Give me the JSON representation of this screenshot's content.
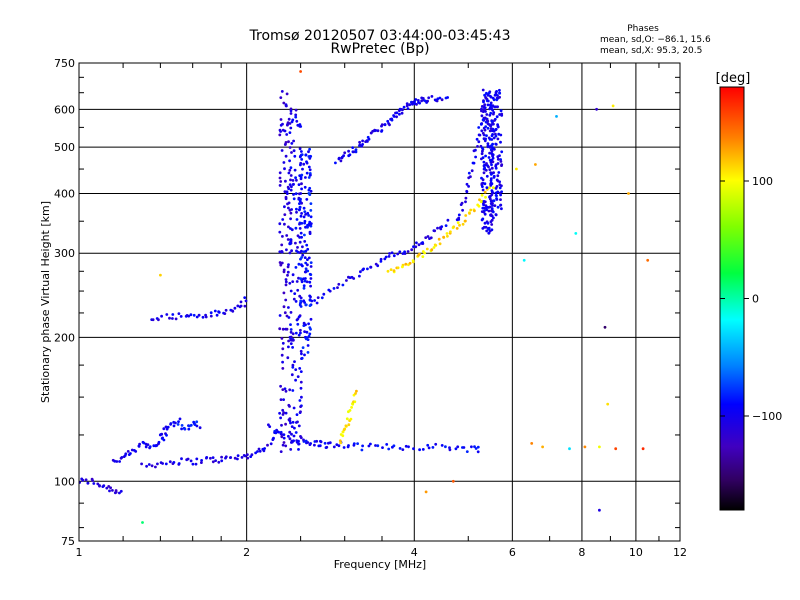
{
  "chart_data": {
    "type": "scatter",
    "title": "Tromsø 20120507 03:44:00-03:45:43",
    "subtitle": "RwPretec (Bp)",
    "xlabel": "Frequency [MHz]",
    "ylabel": "Stationary phase Virtual Height [km]",
    "x_scale": "log",
    "y_scale": "log",
    "xlim": [
      1,
      12
    ],
    "ylim": [
      75,
      750
    ],
    "x_ticks": [
      1,
      2,
      4,
      6,
      8,
      10,
      12
    ],
    "y_ticks": [
      75,
      100,
      200,
      300,
      400,
      500,
      600,
      750
    ],
    "x_tick_labels": [
      "1",
      "2",
      "4",
      "6",
      "8",
      "10",
      "12"
    ],
    "y_tick_labels": [
      "75",
      "100",
      "200",
      "300",
      "400",
      "500",
      "600",
      "750"
    ],
    "grid": true,
    "phases_box": {
      "title": "Phases",
      "line1": "mean, sd,O: −86.1, 15.6",
      "line2": "mean, sd,X:  95.3, 20.5"
    },
    "colorbar": {
      "label": "[deg]",
      "range": [
        -180,
        180
      ],
      "ticks": [
        100,
        0,
        -100
      ],
      "tick_labels": [
        "100",
        "0",
        "−100"
      ]
    },
    "traces": [
      {
        "x": [
          1.0,
          1.05,
          1.1,
          1.15,
          1.2
        ],
        "y": [
          100,
          100,
          98,
          96,
          95
        ],
        "phase": -110
      },
      {
        "x": [
          1.15,
          1.2,
          1.25,
          1.3,
          1.35,
          1.4,
          1.45
        ],
        "y": [
          110,
          112,
          115,
          120,
          118,
          122,
          125
        ],
        "phase": -100
      },
      {
        "x": [
          1.3,
          1.4,
          1.5,
          1.6,
          1.7,
          1.8,
          1.9,
          2.0,
          2.1,
          2.2,
          2.3
        ],
        "y": [
          108,
          109,
          110,
          110,
          111,
          111,
          112,
          113,
          115,
          120,
          130
        ],
        "phase": -105
      },
      {
        "x": [
          1.4,
          1.45,
          1.5,
          1.55,
          1.6,
          1.65
        ],
        "y": [
          125,
          130,
          135,
          128,
          132,
          130
        ],
        "phase": -90
      },
      {
        "x": [
          2.2,
          2.3,
          2.4,
          2.5,
          2.6,
          2.7,
          2.8,
          3.0,
          3.2,
          3.5,
          3.8,
          4.2,
          4.6,
          5.0,
          5.3
        ],
        "y": [
          130,
          125,
          122,
          121,
          120,
          120,
          119,
          119,
          118,
          118,
          118,
          118,
          118,
          117,
          117
        ],
        "phase": -95
      },
      {
        "x": [
          2.95,
          3.0,
          3.05,
          3.1,
          3.15
        ],
        "y": [
          122,
          128,
          135,
          145,
          155
        ],
        "phase": 110
      },
      {
        "x": [
          1.35,
          1.45,
          1.55,
          1.65,
          1.75,
          1.85,
          1.95,
          2.0
        ],
        "y": [
          221,
          221,
          222,
          222,
          224,
          226,
          232,
          240
        ],
        "phase": -100
      },
      {
        "x": [
          2.6,
          2.8,
          3.0,
          3.2,
          3.4,
          3.6,
          3.8,
          4.0,
          4.2,
          4.4,
          4.6
        ],
        "y": [
          235,
          248,
          262,
          273,
          285,
          295,
          300,
          310,
          320,
          335,
          350
        ],
        "phase": -100
      },
      {
        "x": [
          3.6,
          3.8,
          4.0,
          4.2,
          4.4,
          4.6,
          4.8,
          5.0,
          5.2,
          5.4,
          5.6
        ],
        "y": [
          273,
          280,
          290,
          300,
          315,
          330,
          345,
          360,
          380,
          400,
          420
        ],
        "phase": 110
      },
      {
        "x": [
          2.9,
          3.0,
          3.1,
          3.2,
          3.3,
          3.4,
          3.5,
          3.6,
          3.7,
          3.8,
          3.9,
          4.0,
          4.1,
          4.2,
          4.4,
          4.6
        ],
        "y": [
          470,
          480,
          490,
          505,
          520,
          535,
          550,
          565,
          580,
          595,
          610,
          620,
          625,
          628,
          632,
          640
        ],
        "phase": -100
      },
      {
        "x": [
          4.8,
          4.9,
          5.0,
          5.1,
          5.2,
          5.3,
          5.4,
          5.5
        ],
        "y": [
          350,
          380,
          420,
          470,
          520,
          570,
          620,
          660
        ],
        "phase": -100
      }
    ],
    "columns": [
      {
        "x": 2.35,
        "y_range": [
          115,
          680
        ],
        "phase": -110
      },
      {
        "x": 2.45,
        "y_range": [
          115,
          600
        ],
        "phase": -100
      },
      {
        "x": 2.55,
        "y_range": [
          180,
          500
        ],
        "phase": -90
      },
      {
        "x": 5.4,
        "y_range": [
          330,
          660
        ],
        "phase": -100
      },
      {
        "x": 5.6,
        "y_range": [
          350,
          660
        ],
        "phase": -100
      }
    ],
    "scatter_points": [
      {
        "x": 6.5,
        "y": 120,
        "phase": 140
      },
      {
        "x": 6.8,
        "y": 118,
        "phase": 120
      },
      {
        "x": 7.6,
        "y": 117,
        "phase": -40
      },
      {
        "x": 8.1,
        "y": 118,
        "phase": 130
      },
      {
        "x": 8.6,
        "y": 118,
        "phase": 100
      },
      {
        "x": 9.2,
        "y": 117,
        "phase": 150
      },
      {
        "x": 10.3,
        "y": 117,
        "phase": 160
      },
      {
        "x": 6.3,
        "y": 290,
        "phase": -30
      },
      {
        "x": 7.8,
        "y": 330,
        "phase": -10
      },
      {
        "x": 8.8,
        "y": 210,
        "phase": -140
      },
      {
        "x": 8.5,
        "y": 600,
        "phase": -120
      },
      {
        "x": 9.1,
        "y": 610,
        "phase": 120
      },
      {
        "x": 10.5,
        "y": 290,
        "phase": 130
      },
      {
        "x": 6.1,
        "y": 450,
        "phase": 110
      },
      {
        "x": 7.2,
        "y": 580,
        "phase": -30
      },
      {
        "x": 1.4,
        "y": 270,
        "phase": 110
      },
      {
        "x": 4.2,
        "y": 95,
        "phase": 140
      },
      {
        "x": 4.7,
        "y": 100,
        "phase": 150
      },
      {
        "x": 8.6,
        "y": 87,
        "phase": -100
      },
      {
        "x": 1.3,
        "y": 82,
        "phase": 0
      },
      {
        "x": 8.9,
        "y": 145,
        "phase": 120
      },
      {
        "x": 2.5,
        "y": 720,
        "phase": 160
      },
      {
        "x": 6.6,
        "y": 460,
        "phase": 130
      },
      {
        "x": 9.7,
        "y": 400,
        "phase": 120
      }
    ]
  }
}
